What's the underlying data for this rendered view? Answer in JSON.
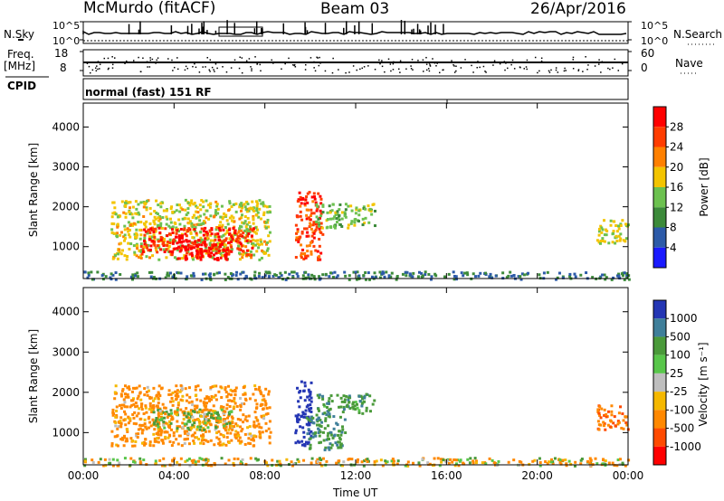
{
  "header": {
    "station": "McMurdo (fitACF)",
    "beam": "Beam 03",
    "date": "26/Apr/2016"
  },
  "strips": {
    "nsky_label": "N.Sky",
    "nsky_ticks": [
      "10^5",
      "10^0"
    ],
    "nsearch_label": "N.Search",
    "nsearch_ticks": [
      "10^5",
      "10^0"
    ],
    "freq_label": "Freq.",
    "freq_unit": "[MHz]",
    "freq_ticks": [
      "18",
      "8"
    ],
    "nave_label": "Nave",
    "nave_ticks": [
      "60",
      "0"
    ],
    "cpid_label": "CPID",
    "cpid_text": "normal (fast) 151 RF"
  },
  "axes": {
    "ylabel": "Slant Range [km]",
    "yticks": [
      1000,
      2000,
      3000,
      4000
    ],
    "ylim": [
      200,
      4600
    ],
    "xlabel": "Time UT",
    "xticks": [
      "00:00",
      "04:00",
      "08:00",
      "12:00",
      "16:00",
      "20:00",
      "00:00"
    ],
    "xlim_hours": [
      0,
      24
    ]
  },
  "power_colorbar": {
    "label": "Power [dB]",
    "ticks": [
      "28",
      "24",
      "20",
      "16",
      "12",
      "8",
      "4"
    ],
    "colors": [
      "#ff0000",
      "#ff3c00",
      "#ff8000",
      "#f3c400",
      "#6cc14f",
      "#3c8a3a",
      "#2c5aa8",
      "#1a1aff"
    ]
  },
  "velocity_colorbar": {
    "label": "Velocity [m s⁻¹]",
    "ticks": [
      "1000",
      "500",
      "100",
      "25",
      "-25",
      "-100",
      "-500",
      "-1000"
    ],
    "colors": [
      "#2436b4",
      "#3f7f9a",
      "#4a9a3a",
      "#58c64a",
      "#bebebe",
      "#f5b800",
      "#ff8800",
      "#ff4a00",
      "#ff0000"
    ]
  },
  "chart_data": [
    {
      "type": "heatmap",
      "panel": "power",
      "xlabel": "Time UT",
      "ylabel": "Slant Range [km]",
      "colorbar": "Power [dB]",
      "clim": [
        0,
        30
      ],
      "regions": [
        {
          "t": [
            1.2,
            8.2
          ],
          "r": [
            700,
            2200
          ],
          "value": 15
        },
        {
          "t": [
            2.5,
            7.5
          ],
          "r": [
            800,
            1500
          ],
          "value": 26
        },
        {
          "t": [
            4.0,
            6.5
          ],
          "r": [
            700,
            1200
          ],
          "value": 29
        },
        {
          "t": [
            9.3,
            10.5
          ],
          "r": [
            700,
            2400
          ],
          "value": 24
        },
        {
          "t": [
            10.2,
            12.8
          ],
          "r": [
            1500,
            2100
          ],
          "value": 12
        },
        {
          "t": [
            22.6,
            24.0
          ],
          "r": [
            1100,
            1700
          ],
          "value": 14
        },
        {
          "t": [
            0.0,
            24.0
          ],
          "r": [
            200,
            400
          ],
          "value": 6
        }
      ]
    },
    {
      "type": "heatmap",
      "panel": "velocity",
      "xlabel": "Time UT",
      "ylabel": "Slant Range [km]",
      "colorbar": "Velocity [m s⁻¹]",
      "clim": [
        -1000,
        1000
      ],
      "regions": [
        {
          "t": [
            1.2,
            8.2
          ],
          "r": [
            700,
            2200
          ],
          "value": -150
        },
        {
          "t": [
            3.0,
            6.5
          ],
          "r": [
            1100,
            1600
          ],
          "value": 60
        },
        {
          "t": [
            9.3,
            10.0
          ],
          "r": [
            700,
            2300
          ],
          "value": 900
        },
        {
          "t": [
            9.8,
            11.5
          ],
          "r": [
            600,
            1500
          ],
          "value": 300
        },
        {
          "t": [
            10.2,
            12.8
          ],
          "r": [
            1500,
            2000
          ],
          "value": 200
        },
        {
          "t": [
            22.6,
            24.0
          ],
          "r": [
            1100,
            1700
          ],
          "value": -250
        },
        {
          "t": [
            0.0,
            24.0
          ],
          "r": [
            200,
            400
          ],
          "value": -50
        }
      ]
    }
  ]
}
